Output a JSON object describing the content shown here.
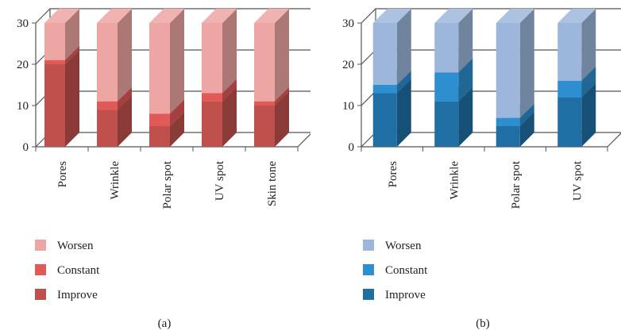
{
  "chart_data": [
    {
      "type": "bar",
      "stacked": true,
      "panel_label": "(a)",
      "ylim": [
        0,
        30
      ],
      "yticks": [
        "0",
        "10",
        "20",
        "30"
      ],
      "categories": [
        "Pores",
        "Wrinkle",
        "Polar spot",
        "UV spot",
        "Skin tone"
      ],
      "series": [
        {
          "name": "Improve",
          "values": [
            20,
            9,
            5,
            11,
            10
          ],
          "color": "#c0504d"
        },
        {
          "name": "Constant",
          "values": [
            1,
            2,
            3,
            2,
            1
          ],
          "color": "#e15a57"
        },
        {
          "name": "Worsen",
          "values": [
            9,
            19,
            22,
            17,
            19
          ],
          "color": "#eea6a4"
        }
      ],
      "legend": [
        "Worsen",
        "Constant",
        "Improve"
      ],
      "legend_position": "bottom-left",
      "grid": true,
      "style": "3d"
    },
    {
      "type": "bar",
      "stacked": true,
      "panel_label": "(b)",
      "ylim": [
        0,
        30
      ],
      "yticks": [
        "0",
        "10",
        "20",
        "30"
      ],
      "categories": [
        "Pores",
        "Wrinkle",
        "Polar spot",
        "UV spot"
      ],
      "series": [
        {
          "name": "Improve",
          "values": [
            13,
            11,
            5,
            12
          ],
          "color": "#1f6fa5"
        },
        {
          "name": "Constant",
          "values": [
            2,
            7,
            2,
            4
          ],
          "color": "#2e8fd0"
        },
        {
          "name": "Worsen",
          "values": [
            15,
            12,
            23,
            14
          ],
          "color": "#9db7dc"
        }
      ],
      "legend": [
        "Worsen",
        "Constant",
        "Improve"
      ],
      "legend_position": "bottom-left",
      "grid": true,
      "style": "3d"
    }
  ]
}
